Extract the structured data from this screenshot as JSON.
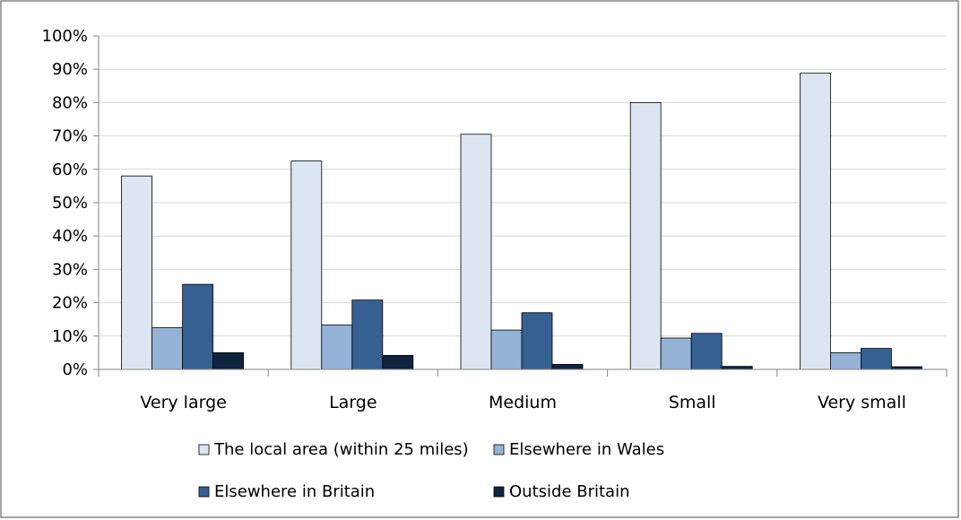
{
  "chart_data": {
    "type": "bar",
    "categories": [
      "Very large",
      "Large",
      "Medium",
      "Small",
      "Very small"
    ],
    "series": [
      {
        "name": "The local area (within 25 miles)",
        "values": [
          58,
          62.5,
          70.5,
          80,
          88.8
        ],
        "color": "#dce6f2"
      },
      {
        "name": "Elsewhere in Wales",
        "values": [
          12.5,
          13.3,
          11.8,
          9.4,
          5.0
        ],
        "color": "#95b3d7"
      },
      {
        "name": "Elsewhere in Britain",
        "values": [
          25.5,
          20.8,
          17.0,
          10.8,
          6.3
        ],
        "color": "#366092"
      },
      {
        "name": "Outside Britain",
        "values": [
          5.0,
          4.2,
          1.5,
          0.9,
          0.8
        ],
        "color": "#0f243e"
      }
    ],
    "yticks": [
      "0%",
      "10%",
      "20%",
      "30%",
      "40%",
      "50%",
      "60%",
      "70%",
      "80%",
      "90%",
      "100%"
    ],
    "ylim": [
      0,
      100
    ],
    "grid": true,
    "legend_position": "bottom",
    "title": "",
    "xlabel": "",
    "ylabel": ""
  },
  "colors": {
    "gridline": "#d9d9d9",
    "axis": "#868686",
    "frame": "#868686",
    "bar_stroke": "#000000"
  }
}
